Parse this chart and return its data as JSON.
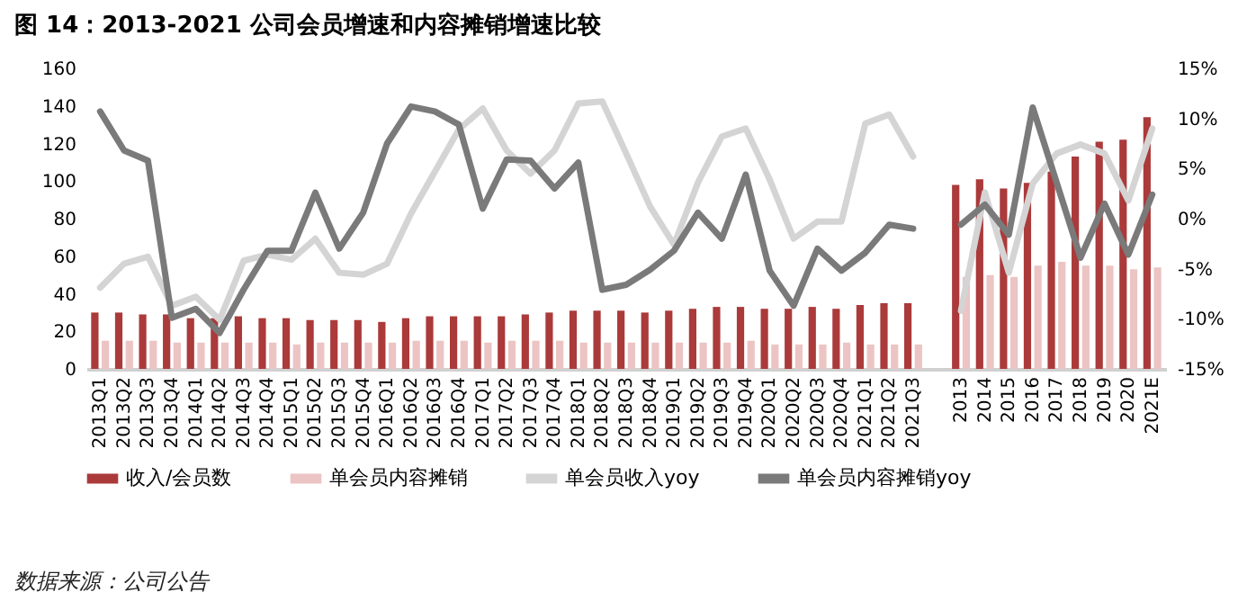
{
  "chart_data": {
    "type": "bar",
    "title": "图 14：2013-2021 公司会员增速和内容摊销增速比较",
    "categories": [
      "2013Q1",
      "2013Q2",
      "2013Q3",
      "2013Q4",
      "2014Q1",
      "2014Q2",
      "2014Q3",
      "2014Q4",
      "2015Q1",
      "2015Q2",
      "2015Q3",
      "2015Q4",
      "2016Q1",
      "2016Q2",
      "2016Q3",
      "2016Q4",
      "2017Q1",
      "2017Q2",
      "2017Q3",
      "2017Q4",
      "2018Q1",
      "2018Q2",
      "2018Q3",
      "2018Q4",
      "2019Q1",
      "2019Q2",
      "2019Q3",
      "2019Q4",
      "2020Q1",
      "2020Q2",
      "2020Q3",
      "2020Q4",
      "2021Q1",
      "2021Q2",
      "2021Q3",
      null,
      "2013",
      "2014",
      "2015",
      "2016",
      "2017",
      "2018",
      "2019",
      "2020",
      "2021E"
    ],
    "series": [
      {
        "name": "收入/会员数",
        "color": "#ab3a3a",
        "values": [
          30,
          30,
          29,
          29,
          27,
          27,
          28,
          27,
          27,
          26,
          26,
          26,
          25,
          27,
          28,
          28,
          28,
          28,
          29,
          30,
          31,
          31,
          31,
          30,
          31,
          32,
          33,
          33,
          32,
          32,
          33,
          32,
          34,
          35,
          35,
          null,
          98,
          101,
          96,
          99,
          105,
          113,
          121,
          122,
          134
        ]
      },
      {
        "name": "单会员内容摊销",
        "color": "#ecc4c4",
        "values": [
          15,
          15,
          15,
          14,
          14,
          14,
          14,
          14,
          13,
          14,
          14,
          14,
          14,
          15,
          15,
          15,
          14,
          15,
          15,
          15,
          14,
          14,
          14,
          14,
          14,
          14,
          14,
          15,
          13,
          13,
          13,
          14,
          13,
          13,
          13,
          null,
          49,
          50,
          49,
          55,
          57,
          55,
          55,
          53,
          54
        ]
      },
      {
        "name": "单会员收入yoy",
        "color": "#d4d4d4",
        "type": "line",
        "axis": "y2",
        "values": [
          -6.9,
          -4.5,
          -3.8,
          -8.7,
          -7.8,
          -10.1,
          -4.2,
          -3.6,
          -4.1,
          -2,
          -5.4,
          -5.6,
          -4.5,
          0.5,
          4.7,
          8.9,
          11,
          6.8,
          4.5,
          6.8,
          11.5,
          11.7,
          6.5,
          1.2,
          -2.6,
          3.6,
          8.2,
          9,
          3.9,
          -2,
          -0.3,
          -0.3,
          9.5,
          10.4,
          6.2,
          null,
          -9.2,
          2.6,
          -5.4,
          3.5,
          6.5,
          7.4,
          6.5,
          1.8,
          9
        ]
      },
      {
        "name": "单会员内容摊销yoy",
        "color": "#7a7a7a",
        "type": "line",
        "axis": "y2",
        "values": [
          10.7,
          6.8,
          5.8,
          -9.9,
          -9,
          -11.4,
          -7.1,
          -3.2,
          -3.2,
          2.6,
          -3,
          0.6,
          7.5,
          11.2,
          10.7,
          9.4,
          1,
          5.9,
          5.8,
          3,
          5.6,
          -7.1,
          -6.6,
          -5.1,
          -3.2,
          0.6,
          -2,
          4.4,
          -5.2,
          -8.7,
          -3,
          -5.2,
          -3.4,
          -0.6,
          -1,
          null,
          -0.6,
          1.4,
          -1.6,
          11.1,
          3.6,
          -3.9,
          1.5,
          -3.6,
          2.4
        ]
      }
    ],
    "ylim": [
      0,
      160
    ],
    "yticks": [
      0,
      20,
      40,
      60,
      80,
      100,
      120,
      140,
      160
    ],
    "y2lim": [
      -15,
      15
    ],
    "y2ticks": [
      {
        "value": 15,
        "label": "15%"
      },
      {
        "value": 10,
        "label": "10%"
      },
      {
        "value": 5,
        "label": "5%"
      },
      {
        "value": 0,
        "label": "0%"
      },
      {
        "value": -5,
        "label": "-5%"
      },
      {
        "value": -10,
        "label": "-10%"
      },
      {
        "value": -15,
        "label": "-15%"
      }
    ],
    "grid": false,
    "legend": "bottom",
    "annotations": [
      "数据来源：公司公告"
    ]
  }
}
